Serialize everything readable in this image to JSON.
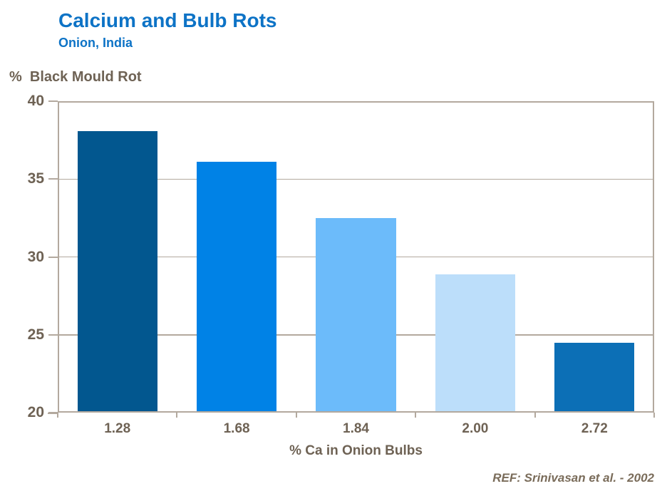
{
  "header": {
    "title": "Calcium and Bulb Rots",
    "subtitle": "Onion, India"
  },
  "footer": {
    "reference": "REF: Srinivasan et al. - 2002"
  },
  "colors": {
    "accent_blue": "#0d73c6",
    "text_brown": "#6e6254",
    "ref_brown": "#7a6c5a",
    "axis_tan": "#b3a99e"
  },
  "chart_data": {
    "type": "bar",
    "title": "Calcium and Bulb Rots",
    "subtitle": "Onion, India",
    "ylabel": "%  Black Mould Rot",
    "xlabel": "% Ca in Onion Bulbs",
    "categories": [
      "1.28",
      "1.68",
      "1.84",
      "2.00",
      "2.72"
    ],
    "values": [
      38.0,
      36.0,
      32.4,
      28.8,
      24.4
    ],
    "ylim": [
      20,
      40
    ],
    "yticks": [
      20,
      25,
      30,
      35,
      40
    ],
    "grid": true,
    "legend": "none",
    "bar_colors": [
      "#02578f",
      "#0082e6",
      "#6cbbfa",
      "#bcdefa",
      "#0c6fb6"
    ],
    "annotation": "REF: Srinivasan et al. - 2002"
  }
}
